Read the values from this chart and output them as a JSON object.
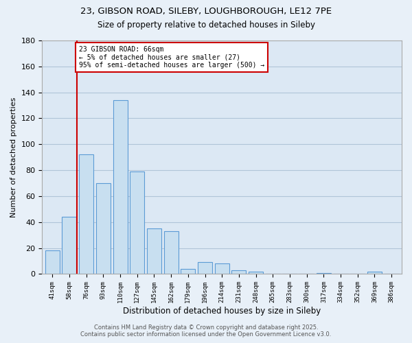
{
  "title_line1": "23, GIBSON ROAD, SILEBY, LOUGHBOROUGH, LE12 7PE",
  "title_line2": "Size of property relative to detached houses in Sileby",
  "xlabel": "Distribution of detached houses by size in Sileby",
  "ylabel": "Number of detached properties",
  "bar_labels": [
    "41sqm",
    "58sqm",
    "76sqm",
    "93sqm",
    "110sqm",
    "127sqm",
    "145sqm",
    "162sqm",
    "179sqm",
    "196sqm",
    "214sqm",
    "231sqm",
    "248sqm",
    "265sqm",
    "283sqm",
    "300sqm",
    "317sqm",
    "334sqm",
    "352sqm",
    "369sqm",
    "386sqm"
  ],
  "bar_values": [
    18,
    44,
    92,
    70,
    134,
    79,
    35,
    33,
    4,
    9,
    8,
    3,
    2,
    0,
    0,
    0,
    1,
    0,
    0,
    2,
    0
  ],
  "bar_color": "#c8dff0",
  "bar_edge_color": "#5b9bd5",
  "reference_line_x": 1.45,
  "reference_line_color": "#cc0000",
  "annotation_text": "23 GIBSON ROAD: 66sqm\n← 5% of detached houses are smaller (27)\n95% of semi-detached houses are larger (500) →",
  "annotation_box_color": "#ffffff",
  "annotation_box_edge_color": "#cc0000",
  "ylim": [
    0,
    180
  ],
  "yticks": [
    0,
    20,
    40,
    60,
    80,
    100,
    120,
    140,
    160,
    180
  ],
  "background_color": "#e8f0f8",
  "plot_bg_color": "#dce8f4",
  "grid_color": "#b0c4d8",
  "footer_line1": "Contains HM Land Registry data © Crown copyright and database right 2025.",
  "footer_line2": "Contains public sector information licensed under the Open Government Licence v3.0."
}
